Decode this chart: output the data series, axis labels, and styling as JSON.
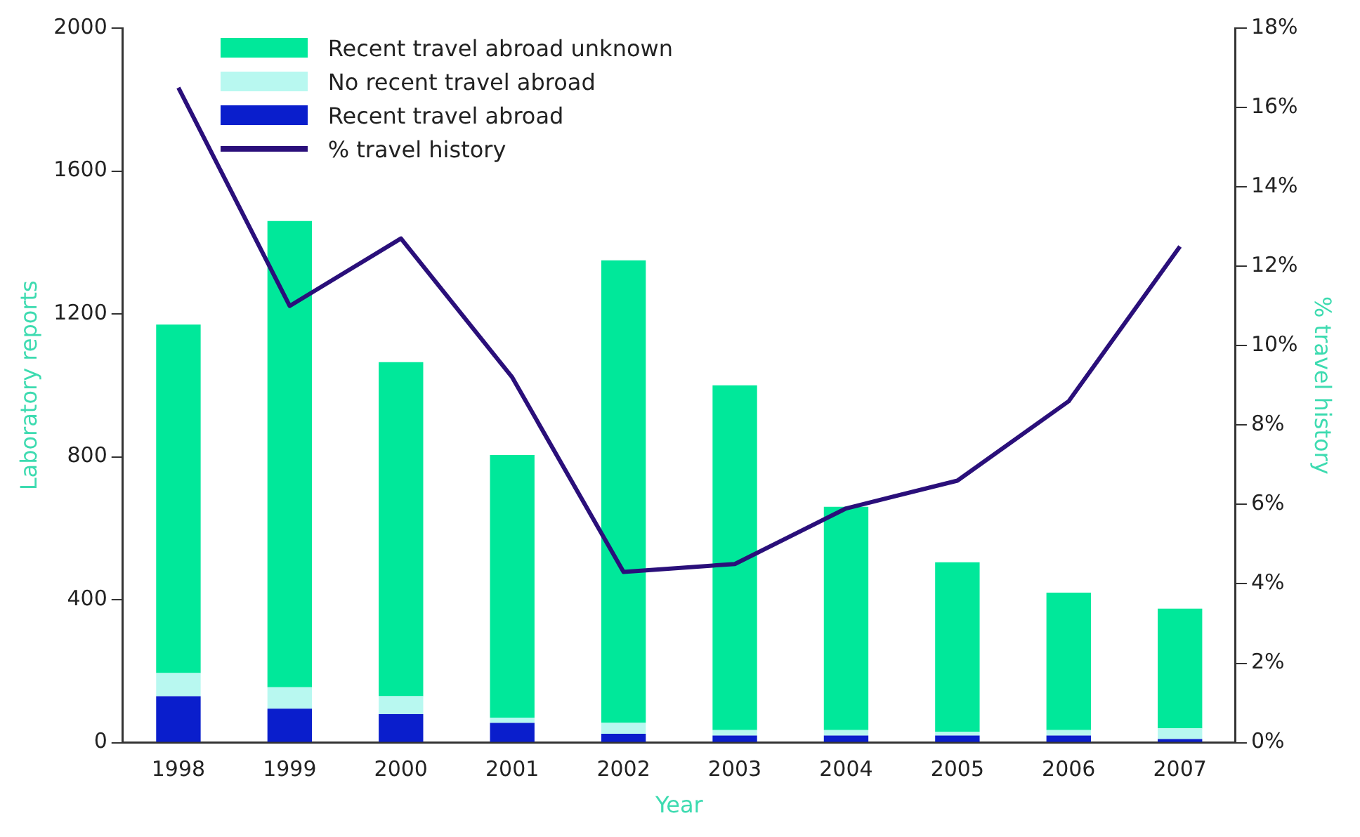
{
  "chart_data": {
    "type": "bar",
    "xlabel": "Year",
    "ylabel": "Laboratory reports",
    "y2label": "% travel history",
    "categories": [
      "1998",
      "1999",
      "2000",
      "2001",
      "2002",
      "2003",
      "2004",
      "2005",
      "2006",
      "2007"
    ],
    "stacked": true,
    "legend": "top left",
    "grid": false,
    "series": [
      {
        "name": "Recent travel abroad",
        "color": "#0a1ecc",
        "values": [
          130,
          95,
          80,
          55,
          25,
          20,
          20,
          20,
          20,
          10
        ]
      },
      {
        "name": "No recent travel abroad",
        "color": "#b8f8f0",
        "values": [
          65,
          60,
          50,
          15,
          30,
          15,
          15,
          10,
          15,
          30
        ]
      },
      {
        "name": "Recent travel abroad unknown",
        "color": "#00e89a",
        "values": [
          975,
          1305,
          935,
          735,
          1295,
          965,
          625,
          475,
          385,
          335
        ]
      },
      {
        "name": "% travel history",
        "type": "line",
        "axis": "y2",
        "color": "#2a0f7a",
        "marker": "none",
        "values": [
          16.5,
          11.0,
          12.7,
          9.2,
          4.3,
          4.5,
          5.9,
          6.6,
          8.6,
          12.5
        ]
      }
    ],
    "ylim": [
      0,
      2000
    ],
    "yticks": [
      0,
      400,
      800,
      1200,
      1600,
      2000
    ],
    "y2lim": [
      0,
      18
    ],
    "y2ticks": [
      {
        "value": 0,
        "label": "0%"
      },
      {
        "value": 2,
        "label": "2%"
      },
      {
        "value": 4,
        "label": "4%"
      },
      {
        "value": 6,
        "label": "6%"
      },
      {
        "value": 8,
        "label": "8%"
      },
      {
        "value": 10,
        "label": "10%"
      },
      {
        "value": 12,
        "label": "12%"
      },
      {
        "value": 14,
        "label": "14%"
      },
      {
        "value": 16,
        "label": "16%"
      },
      {
        "value": 18,
        "label": "18%"
      }
    ]
  }
}
